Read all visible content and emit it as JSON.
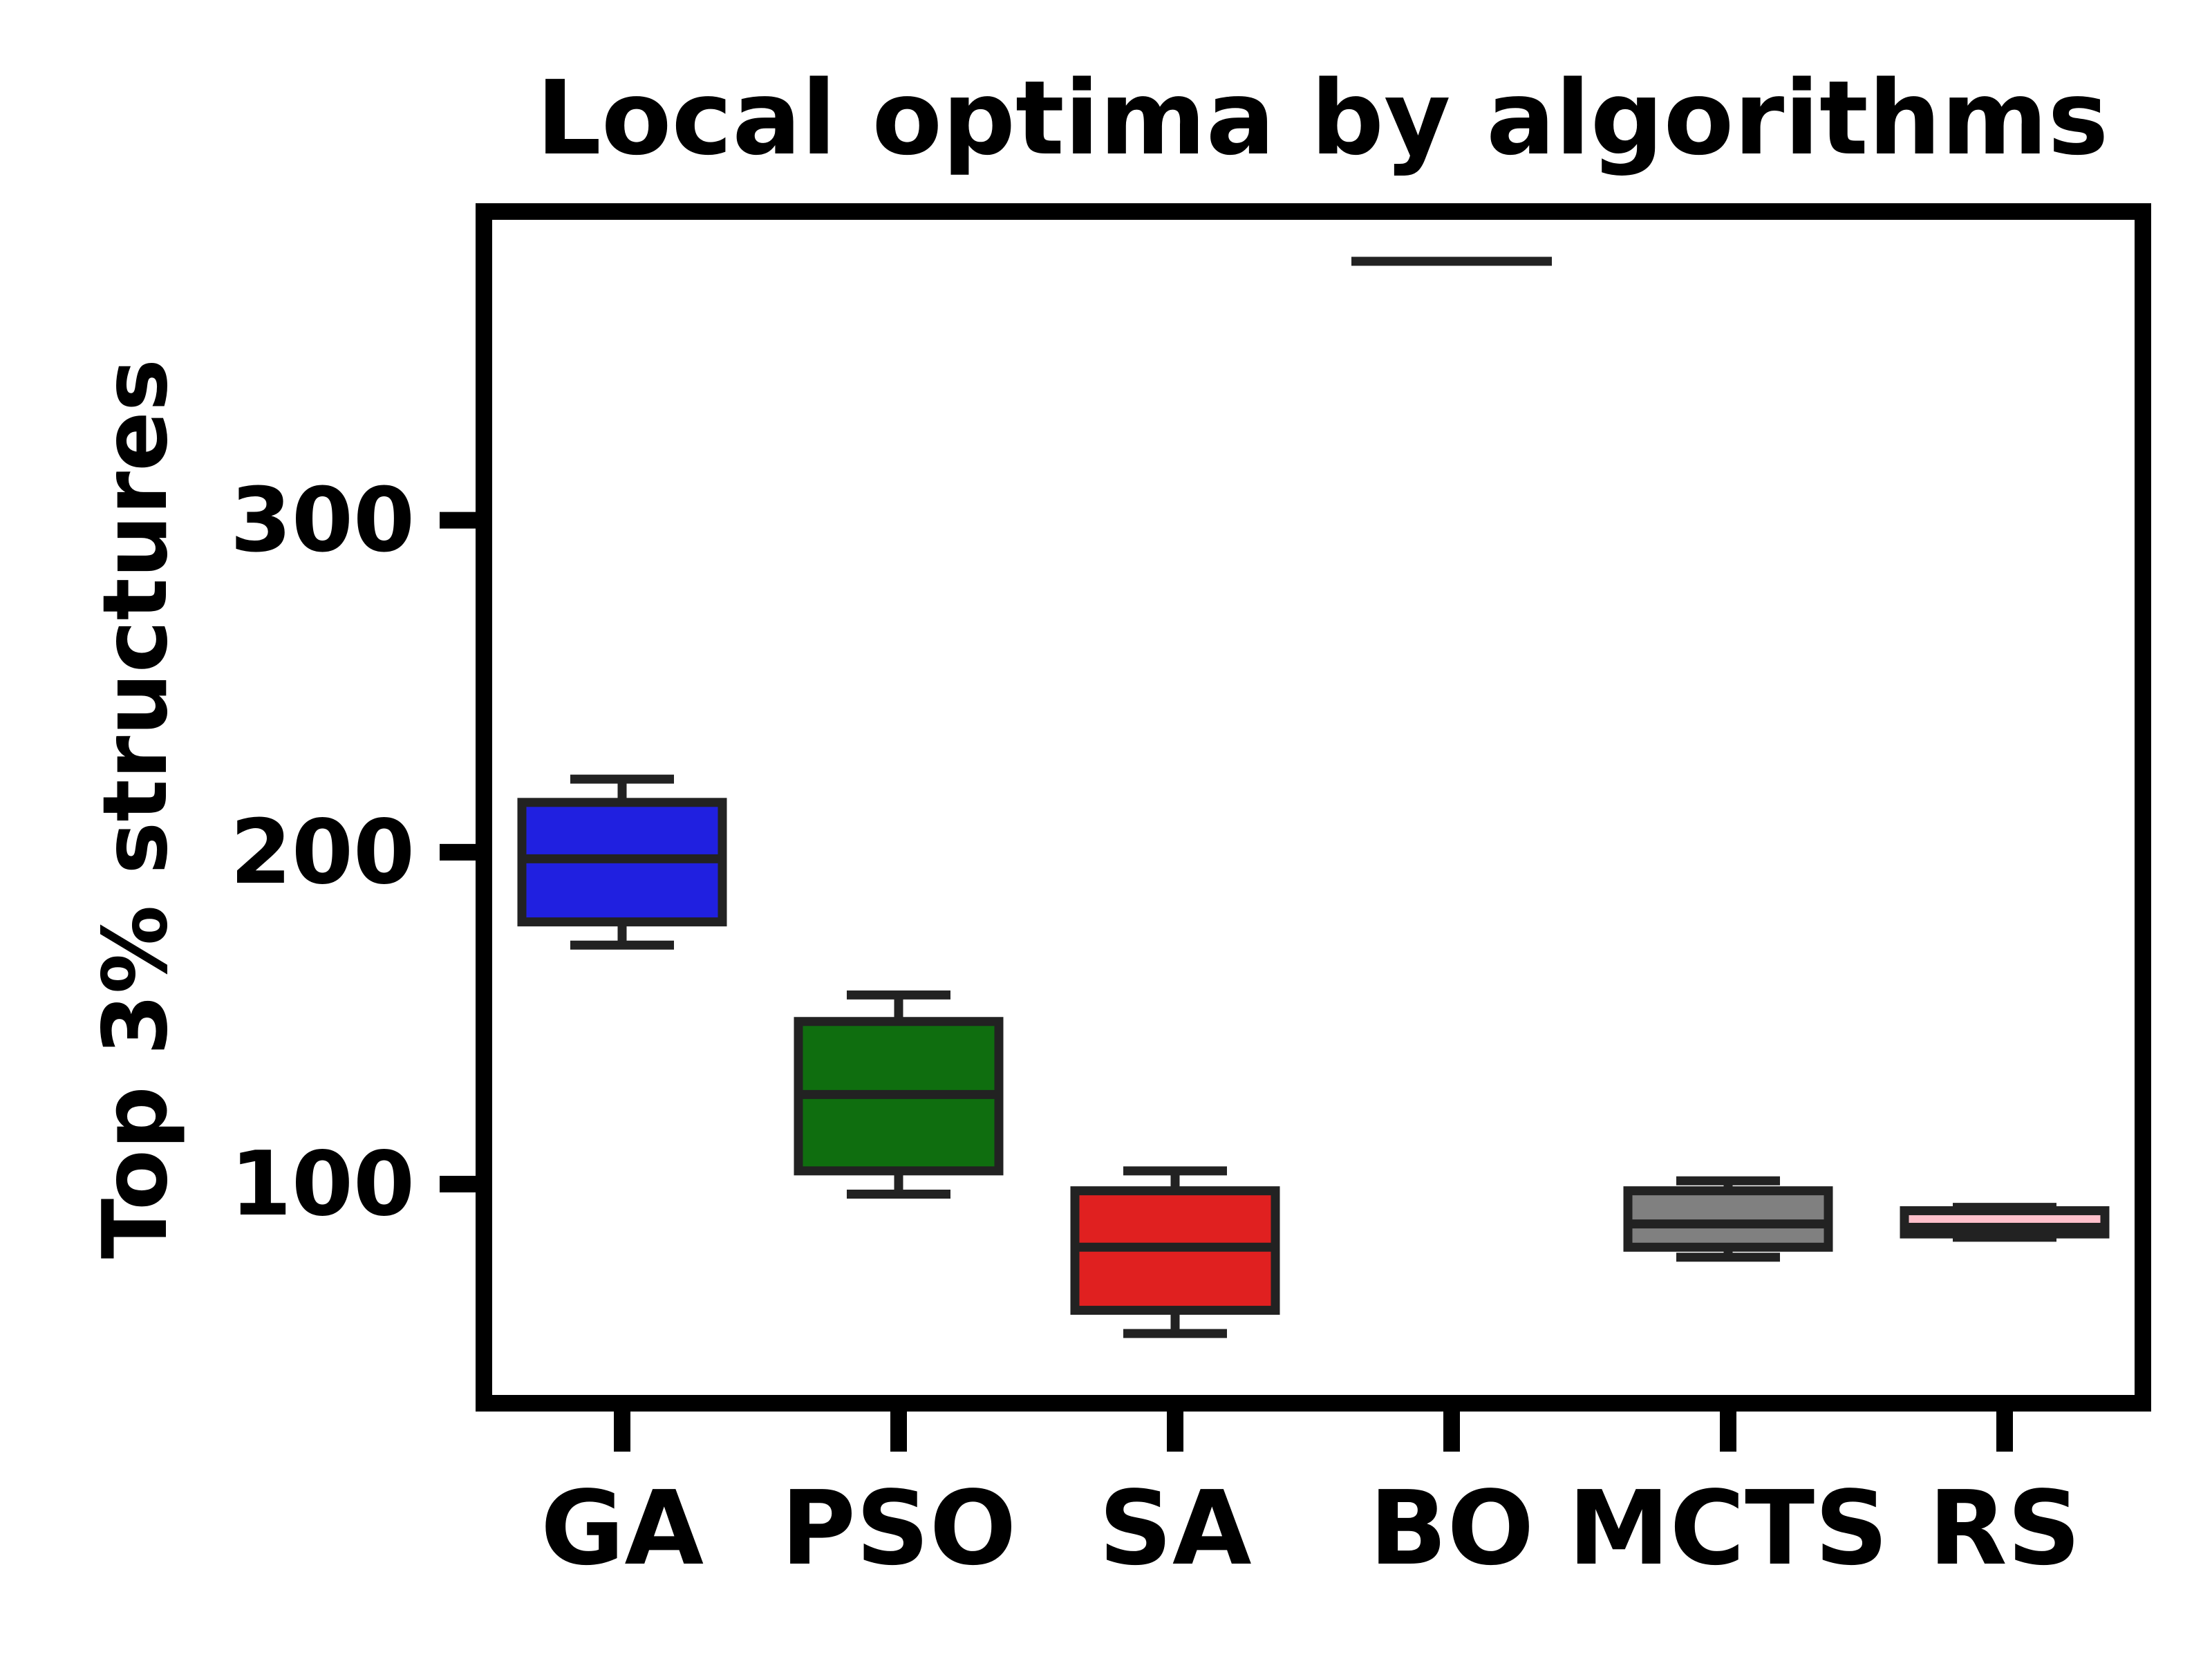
{
  "chart_data": {
    "type": "box",
    "title": "Local optima by algorithms",
    "xlabel": "",
    "ylabel": "Top 3% structures",
    "ylim": [
      34,
      393
    ],
    "yticks": [
      100,
      200,
      300
    ],
    "grid": false,
    "categories": [
      "GA",
      "PSO",
      "SA",
      "BO",
      "MCTS",
      "RS"
    ],
    "boxes": [
      {
        "name": "GA",
        "color": "#2020e0",
        "whisker_low": 172,
        "q1": 179,
        "median": 198,
        "q3": 215,
        "whisker_high": 222
      },
      {
        "name": "PSO",
        "color": "#0f6e0f",
        "whisker_low": 97,
        "q1": 104,
        "median": 127,
        "q3": 149,
        "whisker_high": 157
      },
      {
        "name": "SA",
        "color": "#e02020",
        "whisker_low": 55,
        "q1": 62,
        "median": 81,
        "q3": 98,
        "whisker_high": 104
      },
      {
        "name": "BO",
        "color": "#404040",
        "whisker_low": 378,
        "q1": 378,
        "median": 378,
        "q3": 378,
        "whisker_high": 378
      },
      {
        "name": "MCTS",
        "color": "#808080",
        "whisker_low": 78,
        "q1": 81,
        "median": 88,
        "q3": 98,
        "whisker_high": 101
      },
      {
        "name": "RS",
        "color": "#ffc0cb",
        "whisker_low": 84,
        "q1": 85,
        "median": 87,
        "q3": 92,
        "whisker_high": 93
      }
    ]
  }
}
